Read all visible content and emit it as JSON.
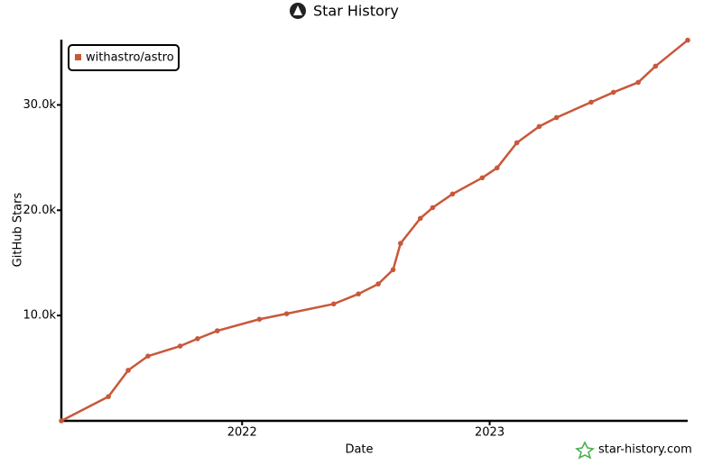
{
  "chart_data": {
    "type": "line",
    "title": "Star History",
    "x_label": "Date",
    "y_label": "GitHub Stars",
    "watermark": "star-history.com",
    "x": [
      2021.27,
      2021.46,
      2021.54,
      2021.62,
      2021.75,
      2021.82,
      2021.9,
      2022.07,
      2022.18,
      2022.37,
      2022.47,
      2022.55,
      2022.61,
      2022.64,
      2022.72,
      2022.77,
      2022.85,
      2022.97,
      2023.03,
      2023.11,
      2023.2,
      2023.27,
      2023.41,
      2023.5,
      2023.6,
      2023.67,
      2023.8
    ],
    "series": [
      {
        "name": "withastro/astro",
        "color": "#c8583a",
        "values": [
          0,
          2300,
          4800,
          6150,
          7100,
          7800,
          8550,
          9650,
          10170,
          11100,
          12050,
          13000,
          14350,
          16850,
          19230,
          20250,
          21540,
          23080,
          24020,
          26410,
          27950,
          28800,
          30260,
          31200,
          32140,
          33680,
          36150
        ]
      }
    ],
    "xlim": [
      2021.27,
      2023.8
    ],
    "xticks": [
      2022,
      2023
    ],
    "ylim": [
      0,
      36200
    ],
    "yticks": [
      {
        "value": 10000,
        "label": "10.0k"
      },
      {
        "value": 20000,
        "label": "20.0k"
      },
      {
        "value": 30000,
        "label": "30.0k"
      }
    ],
    "grid": false,
    "legend": "top-left"
  }
}
